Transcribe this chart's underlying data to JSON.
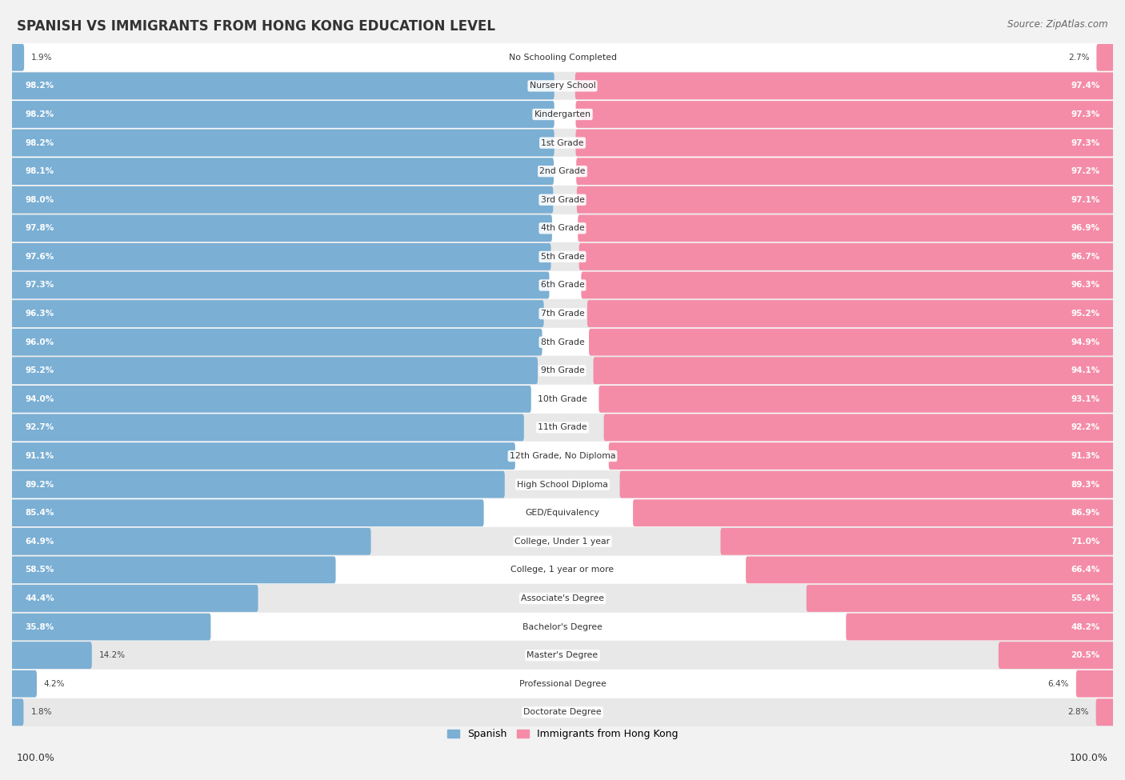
{
  "title": "SPANISH VS IMMIGRANTS FROM HONG KONG EDUCATION LEVEL",
  "source": "Source: ZipAtlas.com",
  "categories": [
    "No Schooling Completed",
    "Nursery School",
    "Kindergarten",
    "1st Grade",
    "2nd Grade",
    "3rd Grade",
    "4th Grade",
    "5th Grade",
    "6th Grade",
    "7th Grade",
    "8th Grade",
    "9th Grade",
    "10th Grade",
    "11th Grade",
    "12th Grade, No Diploma",
    "High School Diploma",
    "GED/Equivalency",
    "College, Under 1 year",
    "College, 1 year or more",
    "Associate's Degree",
    "Bachelor's Degree",
    "Master's Degree",
    "Professional Degree",
    "Doctorate Degree"
  ],
  "spanish": [
    1.9,
    98.2,
    98.2,
    98.2,
    98.1,
    98.0,
    97.8,
    97.6,
    97.3,
    96.3,
    96.0,
    95.2,
    94.0,
    92.7,
    91.1,
    89.2,
    85.4,
    64.9,
    58.5,
    44.4,
    35.8,
    14.2,
    4.2,
    1.8
  ],
  "hk": [
    2.7,
    97.4,
    97.3,
    97.3,
    97.2,
    97.1,
    96.9,
    96.7,
    96.3,
    95.2,
    94.9,
    94.1,
    93.1,
    92.2,
    91.3,
    89.3,
    86.9,
    71.0,
    66.4,
    55.4,
    48.2,
    20.5,
    6.4,
    2.8
  ],
  "spanish_color": "#7bafd4",
  "hk_color": "#f48ca7",
  "background_color": "#f2f2f2",
  "row_color_odd": "#ffffff",
  "row_color_even": "#e8e8e8",
  "label_color_white": "#ffffff",
  "label_color_dark": "#444444",
  "legend_spanish": "Spanish",
  "legend_hk": "Immigrants from Hong Kong",
  "total": 100.0
}
